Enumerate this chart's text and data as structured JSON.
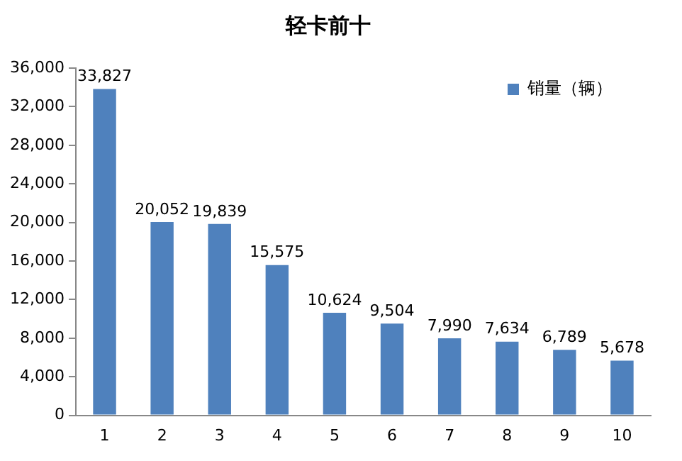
{
  "chart_data": {
    "type": "bar",
    "title": "轻卡前十",
    "categories": [
      "1",
      "2",
      "3",
      "4",
      "5",
      "6",
      "7",
      "8",
      "9",
      "10"
    ],
    "series": [
      {
        "name": "销量（辆）",
        "color": "#4f81bd",
        "values": [
          33827,
          20052,
          19839,
          15575,
          10624,
          9504,
          7990,
          7634,
          6789,
          5678
        ],
        "value_labels": [
          "33,827",
          "20,052",
          "19,839",
          "15,575",
          "10,624",
          "9,504",
          "7,990",
          "7,634",
          "6,789",
          "5,678"
        ]
      }
    ],
    "ylim": [
      0,
      36000
    ],
    "yticks": [
      0,
      {
        "value": 4000,
        "label": "4,000"
      },
      {
        "value": 8000,
        "label": "8,000"
      },
      {
        "value": 12000,
        "label": "12,000"
      },
      {
        "value": 16000,
        "label": "16,000"
      },
      {
        "value": 20000,
        "label": "20,000"
      },
      {
        "value": 24000,
        "label": "24,000"
      },
      {
        "value": 28000,
        "label": "28,000"
      },
      {
        "value": 32000,
        "label": "32,000"
      },
      {
        "value": 36000,
        "label": "36,000"
      }
    ],
    "grid": false,
    "legend": "top right"
  }
}
